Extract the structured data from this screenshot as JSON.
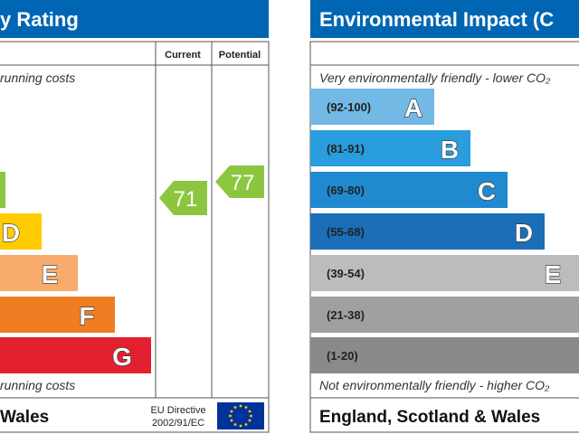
{
  "left_panel": {
    "title": "y Rating",
    "column_current": "Current",
    "column_potential": "Potential",
    "top_note": "running costs",
    "bottom_note": "running costs",
    "bands": [
      {
        "letter": "D"
      },
      {
        "letter": "E"
      },
      {
        "letter": "F"
      },
      {
        "letter": "G"
      }
    ],
    "current": 71,
    "potential": 77,
    "footer": "Wales",
    "directive_line1": "EU Directive",
    "directive_line2": "2002/91/EC"
  },
  "right_panel": {
    "title": "Environmental Impact (C",
    "top_note": "Very environmentally friendly - lower CO₂",
    "bottom_note": "Not environmentally friendly - higher CO₂",
    "bands": [
      {
        "range": "(92-100)",
        "letter": "A"
      },
      {
        "range": "(81-91)",
        "letter": "B"
      },
      {
        "range": "(69-80)",
        "letter": "C"
      },
      {
        "range": "(55-68)",
        "letter": "D"
      },
      {
        "range": "(39-54)",
        "letter": "E"
      },
      {
        "range": "(21-38)"
      },
      {
        "range": "(1-20)"
      }
    ],
    "footer": "England, Scotland & Wales"
  }
}
